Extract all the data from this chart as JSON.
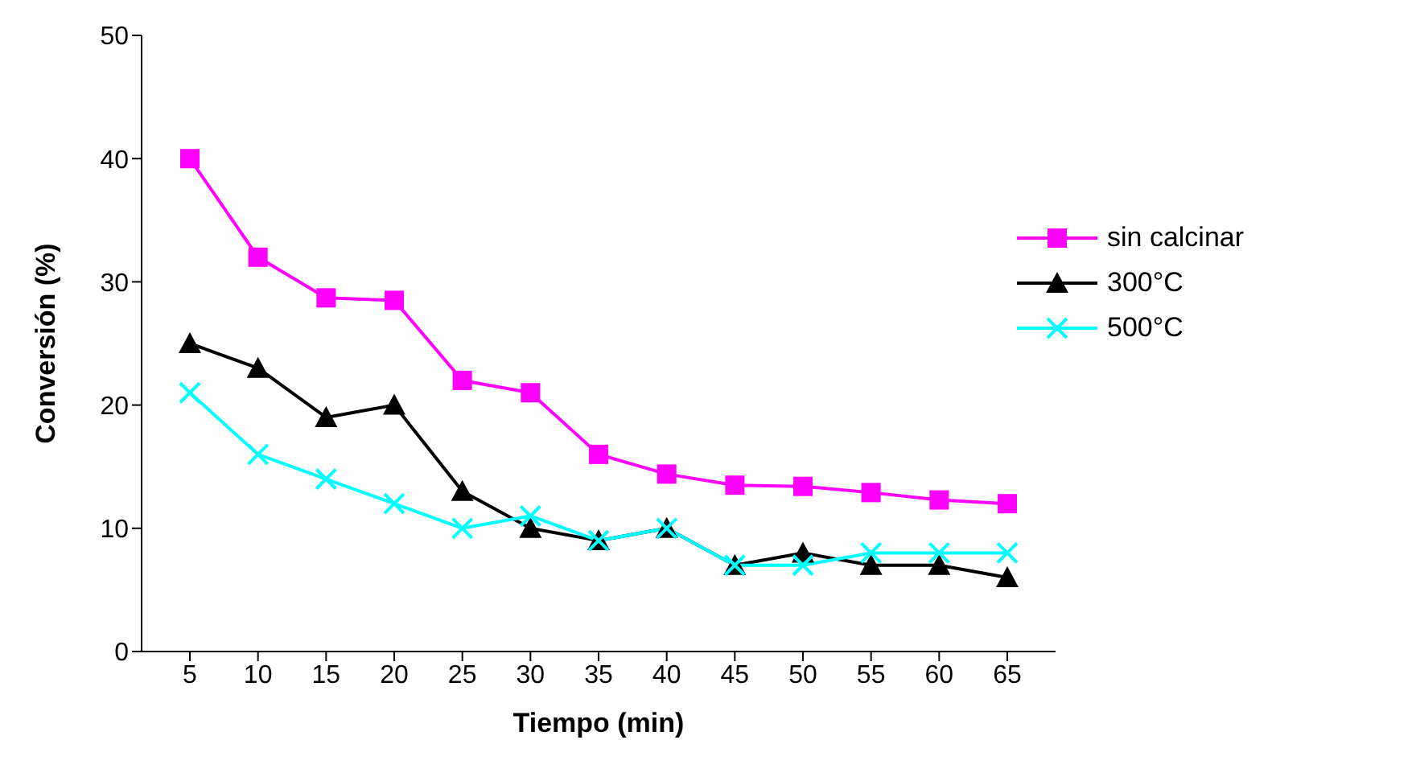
{
  "chart_data": {
    "type": "line",
    "xlabel": "Tiempo (min)",
    "ylabel": "Conversión  (%)",
    "categories": [
      "5",
      "10",
      "15",
      "20",
      "25",
      "30",
      "35",
      "40",
      "45",
      "50",
      "55",
      "60",
      "65"
    ],
    "ylim": [
      0,
      50
    ],
    "yticks": [
      0,
      10,
      20,
      30,
      40,
      50
    ],
    "grid": false,
    "legend": "top right",
    "series": [
      {
        "name": "sin calcinar",
        "color": "#ff00ff",
        "marker": "square",
        "values": [
          40,
          32,
          28.7,
          28.5,
          22,
          21,
          16,
          14.4,
          13.5,
          13.4,
          12.9,
          12.3,
          12
        ]
      },
      {
        "name": "300°C",
        "color": "#000000",
        "marker": "triangle",
        "values": [
          25,
          23,
          19,
          20,
          13,
          10,
          9,
          10,
          7,
          8,
          7,
          7,
          6
        ]
      },
      {
        "name": "500°C",
        "color": "#00ffff",
        "marker": "cross",
        "values": [
          21,
          16,
          14,
          12,
          10,
          11,
          9,
          10,
          7,
          7,
          8,
          8,
          8
        ]
      }
    ]
  }
}
